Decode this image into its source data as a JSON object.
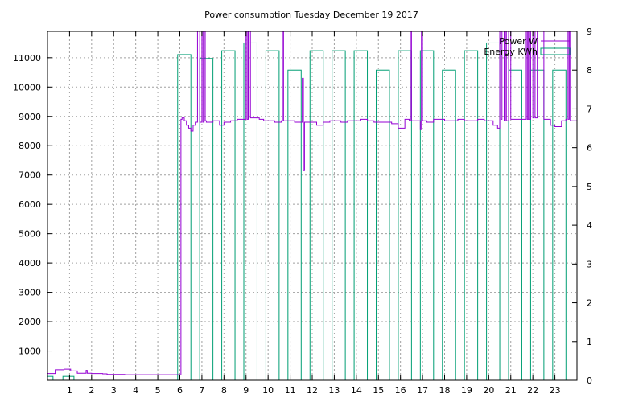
{
  "chart_data": {
    "type": "line",
    "title": "Power consumption Tuesday December 19 2017",
    "xlabel": "",
    "ylabel": "",
    "y2label": "",
    "xlim": [
      0,
      24
    ],
    "ylim": [
      0,
      11900
    ],
    "y2lim": [
      0,
      9
    ],
    "x_ticks": [
      "1",
      "2",
      "3",
      "4",
      "5",
      "6",
      "7",
      "8",
      "9",
      "10",
      "11",
      "12",
      "13",
      "14",
      "15",
      "16",
      "17",
      "18",
      "19",
      "20",
      "21",
      "22",
      "23"
    ],
    "y_ticks": [
      1000,
      2000,
      3000,
      4000,
      5000,
      6000,
      7000,
      8000,
      9000,
      10000,
      11000
    ],
    "y2_ticks": [
      0,
      1,
      2,
      3,
      4,
      5,
      6,
      7,
      8,
      9
    ],
    "grid": true,
    "legend_position": "top-right",
    "series": [
      {
        "name": "Power W",
        "axis": "y1",
        "color": "#9400d3",
        "x": [
          0,
          0.3,
          0.35,
          0.7,
          0.75,
          1.0,
          1.05,
          1.3,
          1.35,
          1.7,
          1.75,
          1.8,
          1.9,
          2.0,
          2.2,
          2.5,
          2.7,
          3.0,
          3.5,
          4.0,
          4.5,
          5.0,
          5.5,
          6.0,
          6.05,
          6.1,
          6.2,
          6.3,
          6.4,
          6.5,
          6.6,
          6.7,
          6.8,
          6.9,
          7.0,
          7.05,
          7.1,
          7.15,
          7.2,
          7.3,
          7.5,
          7.8,
          8.0,
          8.3,
          8.6,
          8.9,
          9.0,
          9.05,
          9.1,
          9.2,
          9.4,
          9.6,
          9.8,
          10.0,
          10.3,
          10.6,
          10.65,
          10.7,
          10.9,
          11.2,
          11.5,
          11.55,
          11.6,
          11.65,
          11.7,
          11.9,
          12.2,
          12.5,
          12.8,
          13.0,
          13.3,
          13.6,
          13.9,
          14.2,
          14.5,
          14.8,
          15.0,
          15.3,
          15.6,
          15.9,
          16.2,
          16.4,
          16.45,
          16.5,
          16.8,
          16.9,
          16.95,
          17.0,
          17.2,
          17.5,
          17.8,
          18.0,
          18.3,
          18.6,
          18.9,
          19.2,
          19.5,
          19.8,
          20.0,
          20.2,
          20.4,
          20.5,
          20.55,
          20.6,
          20.7,
          20.75,
          20.8,
          20.9,
          21.0,
          21.3,
          21.6,
          21.7,
          21.75,
          21.8,
          21.85,
          21.9,
          22.0,
          22.05,
          22.1,
          22.2,
          22.5,
          22.8,
          23.0,
          23.3,
          23.5,
          23.55,
          23.6,
          23.65,
          23.7,
          23.8,
          24.0
        ],
        "y": [
          230,
          230,
          360,
          360,
          380,
          380,
          320,
          320,
          240,
          240,
          340,
          240,
          240,
          230,
          230,
          220,
          200,
          200,
          190,
          190,
          190,
          190,
          190,
          180,
          8900,
          8950,
          8850,
          8700,
          8600,
          8500,
          8700,
          8800,
          11900,
          8800,
          11900,
          8800,
          11900,
          8850,
          8800,
          8800,
          8850,
          8700,
          8800,
          8850,
          8900,
          8900,
          11900,
          8900,
          11900,
          8950,
          8950,
          8900,
          8850,
          8850,
          8800,
          8850,
          11900,
          8850,
          8850,
          8800,
          8800,
          10300,
          7150,
          8800,
          8800,
          8800,
          8700,
          8800,
          8850,
          8850,
          8800,
          8850,
          8850,
          8900,
          8850,
          8800,
          8800,
          8800,
          8750,
          8600,
          8900,
          8850,
          11900,
          8850,
          8850,
          8550,
          11900,
          8850,
          8800,
          8900,
          8900,
          8850,
          8850,
          8900,
          8850,
          8850,
          8900,
          8850,
          8850,
          8700,
          8600,
          11900,
          8900,
          11900,
          8850,
          11900,
          8850,
          11900,
          8900,
          8900,
          8900,
          11900,
          8900,
          11900,
          8900,
          11900,
          8950,
          11900,
          8950,
          11900,
          8900,
          8700,
          8650,
          8850,
          8900,
          11900,
          8900,
          11900,
          8850,
          8850,
          8850
        ]
      },
      {
        "name": "Energy KWh",
        "axis": "y2",
        "color": "#009e73",
        "type": "step-bar",
        "bar_start": [
          0,
          0.7,
          5.9,
          6.9,
          7.9,
          8.9,
          9.9,
          10.9,
          11.9,
          12.9,
          13.9,
          14.9,
          15.9,
          16.9,
          17.9,
          18.9,
          19.9,
          20.9,
          21.9,
          22.9
        ],
        "bar_end": [
          0.25,
          1.2,
          6.5,
          7.5,
          8.5,
          9.5,
          10.5,
          11.5,
          12.5,
          13.5,
          14.5,
          15.5,
          16.5,
          17.5,
          18.5,
          19.5,
          20.5,
          21.5,
          22.5,
          23.5
        ],
        "values": [
          0.1,
          0.1,
          8.4,
          8.3,
          8.5,
          8.7,
          8.5,
          8.0,
          8.5,
          8.5,
          8.5,
          8.0,
          8.5,
          8.5,
          8.0,
          8.5,
          8.7,
          8.0,
          8.0,
          8.0
        ]
      }
    ]
  }
}
